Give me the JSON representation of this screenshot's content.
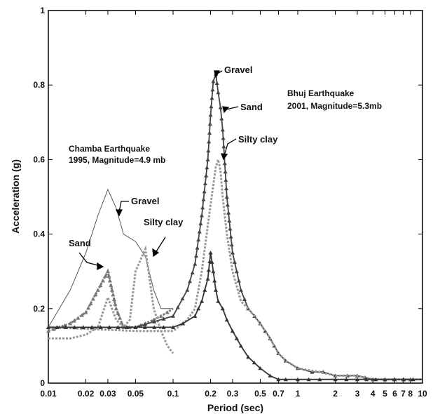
{
  "chart_data": {
    "type": "line",
    "xlabel": "Period (sec)",
    "ylabel": "Acceleration (g)",
    "xscale": "log",
    "xlim": [
      0.01,
      10
    ],
    "ylim": [
      0,
      1
    ],
    "xticks": [
      {
        "v": 0.01,
        "label": "0.01"
      },
      {
        "v": 0.02,
        "label": "0.02"
      },
      {
        "v": 0.03,
        "label": "0.03"
      },
      {
        "v": 0.05,
        "label": "0.05"
      },
      {
        "v": 0.1,
        "label": "0.1"
      },
      {
        "v": 0.2,
        "label": "0.2"
      },
      {
        "v": 0.3,
        "label": "0.3"
      },
      {
        "v": 0.5,
        "label": "0.5"
      },
      {
        "v": 0.7,
        "label": "0.7"
      },
      {
        "v": 1,
        "label": "1"
      },
      {
        "v": 2,
        "label": "2"
      },
      {
        "v": 3,
        "label": "3"
      },
      {
        "v": 4,
        "label": "4"
      },
      {
        "v": 5,
        "label": "5"
      },
      {
        "v": 6,
        "label": "6"
      },
      {
        "v": 7,
        "label": "7"
      },
      {
        "v": 8,
        "label": "8"
      },
      {
        "v": 10,
        "label": "10"
      }
    ],
    "yticks": [
      {
        "v": 0,
        "label": "0"
      },
      {
        "v": 0.2,
        "label": "0.2"
      },
      {
        "v": 0.4,
        "label": "0.4"
      },
      {
        "v": 0.6,
        "label": "0.6"
      },
      {
        "v": 0.8,
        "label": "0.8"
      },
      {
        "v": 1,
        "label": "1"
      }
    ],
    "grid": false,
    "series": [
      {
        "group": "Chamba",
        "style": "thin",
        "color": "#555555",
        "x": [
          0.01,
          0.015,
          0.02,
          0.025,
          0.03,
          0.035,
          0.04,
          0.05,
          0.06,
          0.07,
          0.08,
          0.09,
          0.1
        ],
        "y": [
          0.15,
          0.25,
          0.35,
          0.45,
          0.52,
          0.47,
          0.4,
          0.38,
          0.34,
          0.25,
          0.2,
          0.2,
          0.2
        ]
      },
      {
        "group": "Chamba",
        "style": "dotted-triangle",
        "color": "#777777",
        "x": [
          0.01,
          0.015,
          0.02,
          0.025,
          0.03,
          0.035,
          0.04,
          0.05,
          0.06,
          0.07,
          0.08,
          0.09,
          0.1
        ],
        "y": [
          0.14,
          0.16,
          0.19,
          0.25,
          0.3,
          0.2,
          0.15,
          0.15,
          0.16,
          0.17,
          0.18,
          0.19,
          0.2
        ]
      },
      {
        "group": "Chamba",
        "style": "dotted",
        "color": "#999999",
        "x": [
          0.01,
          0.015,
          0.02,
          0.025,
          0.03,
          0.035,
          0.04,
          0.045,
          0.05,
          0.06,
          0.07,
          0.08,
          0.09,
          0.1
        ],
        "y": [
          0.12,
          0.12,
          0.13,
          0.15,
          0.23,
          0.17,
          0.15,
          0.17,
          0.3,
          0.36,
          0.2,
          0.14,
          0.1,
          0.08
        ]
      },
      {
        "group": "Bhuj",
        "style": "solid-triangle",
        "color": "#444444",
        "x": [
          0.01,
          0.05,
          0.1,
          0.13,
          0.15,
          0.17,
          0.19,
          0.2,
          0.21,
          0.22,
          0.23,
          0.24,
          0.25,
          0.27,
          0.3,
          0.35,
          0.4,
          0.45,
          0.5,
          0.6,
          0.7,
          0.8,
          1,
          1.3,
          1.6,
          2,
          2.5,
          3,
          4,
          5,
          6,
          7,
          8,
          10
        ],
        "y": [
          0.15,
          0.15,
          0.18,
          0.25,
          0.32,
          0.45,
          0.6,
          0.72,
          0.81,
          0.83,
          0.78,
          0.74,
          0.68,
          0.5,
          0.35,
          0.25,
          0.2,
          0.18,
          0.16,
          0.12,
          0.08,
          0.06,
          0.04,
          0.03,
          0.03,
          0.02,
          0.02,
          0.02,
          0.01,
          0.01,
          0.01,
          0.01,
          0.01,
          0.01
        ]
      },
      {
        "group": "Bhuj",
        "style": "dotted",
        "color": "#999999",
        "x": [
          0.01,
          0.05,
          0.1,
          0.13,
          0.15,
          0.17,
          0.2,
          0.22,
          0.23,
          0.24,
          0.25,
          0.27,
          0.3,
          0.35,
          0.4,
          0.5,
          0.6,
          0.7,
          0.8,
          1,
          1.5,
          2,
          3,
          4,
          6,
          10
        ],
        "y": [
          0.15,
          0.14,
          0.14,
          0.17,
          0.2,
          0.3,
          0.48,
          0.58,
          0.6,
          0.57,
          0.5,
          0.4,
          0.3,
          0.22,
          0.2,
          0.16,
          0.12,
          0.08,
          0.06,
          0.04,
          0.03,
          0.02,
          0.02,
          0.01,
          0.01,
          0.01
        ]
      },
      {
        "group": "Bhuj",
        "style": "triangle-second",
        "color": "#333333",
        "x": [
          0.01,
          0.05,
          0.1,
          0.12,
          0.15,
          0.17,
          0.19,
          0.2,
          0.21,
          0.22,
          0.23,
          0.25,
          0.27,
          0.3,
          0.35,
          0.4,
          0.5,
          0.6,
          0.7,
          0.8,
          1,
          1.5,
          2,
          3,
          5,
          10
        ],
        "y": [
          0.15,
          0.15,
          0.15,
          0.16,
          0.18,
          0.22,
          0.28,
          0.35,
          0.3,
          0.25,
          0.22,
          0.2,
          0.17,
          0.14,
          0.1,
          0.07,
          0.04,
          0.02,
          0.01,
          0.01,
          0.01,
          0.01,
          0.01,
          0.01,
          0.01,
          0.01
        ]
      }
    ],
    "annotations": {
      "chamba_title_line1": "Chamba Earthquake",
      "chamba_title_line2": "1995, Magnitude=4.9 mb",
      "chamba_gravel": "Gravel",
      "chamba_silty_clay": "Silty clay",
      "chamba_sand": "Sand",
      "bhuj_title_line1": "Bhuj Earthquake",
      "bhuj_title_line2": "2001, Magnitude=5.3mb",
      "bhuj_gravel": "Gravel",
      "bhuj_sand": "Sand",
      "bhuj_silty_clay": "Silty clay"
    }
  }
}
